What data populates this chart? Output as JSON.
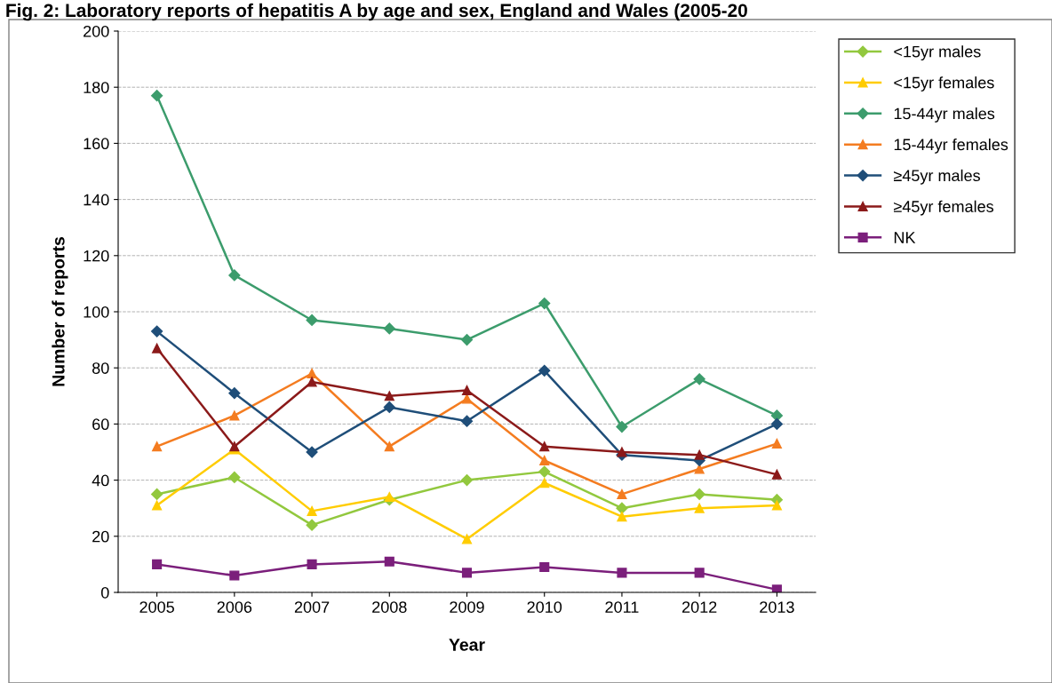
{
  "chart_data": {
    "type": "line",
    "title": "Fig. 2: Laboratory reports of hepatitis A by age and sex, England and Wales (2005-20",
    "xlabel": "Year",
    "ylabel": "Number of reports",
    "categories": [
      "2005",
      "2006",
      "2007",
      "2008",
      "2009",
      "2010",
      "2011",
      "2012",
      "2013"
    ],
    "ylim": [
      0,
      200
    ],
    "yticks": [
      0,
      20,
      40,
      60,
      80,
      100,
      120,
      140,
      160,
      180,
      200
    ],
    "grid": "y",
    "legend": "top right",
    "series": [
      {
        "name": "<15yr males",
        "color": "#92c83e",
        "marker": "diamond",
        "values": [
          35,
          41,
          24,
          33,
          40,
          43,
          30,
          35,
          33
        ]
      },
      {
        "name": "<15yr females",
        "color": "#ffcc00",
        "marker": "triangle",
        "values": [
          31,
          51,
          29,
          34,
          19,
          39,
          27,
          30,
          31
        ]
      },
      {
        "name": "15-44yr males",
        "color": "#3c9c6c",
        "marker": "diamond",
        "values": [
          177,
          113,
          97,
          94,
          90,
          103,
          59,
          76,
          63
        ]
      },
      {
        "name": "15-44yr females",
        "color": "#f47c20",
        "marker": "triangle",
        "values": [
          52,
          63,
          78,
          52,
          69,
          47,
          35,
          44,
          53
        ]
      },
      {
        "name": "≥45yr males",
        "color": "#1f4e79",
        "marker": "diamond",
        "values": [
          93,
          71,
          50,
          66,
          61,
          79,
          49,
          47,
          60
        ]
      },
      {
        "name": "≥45yr females",
        "color": "#8b1a1a",
        "marker": "triangle",
        "values": [
          87,
          52,
          75,
          70,
          72,
          52,
          50,
          49,
          42
        ]
      },
      {
        "name": "NK",
        "color": "#7b1f7b",
        "marker": "square",
        "values": [
          10,
          6,
          10,
          11,
          7,
          9,
          7,
          7,
          1
        ]
      }
    ]
  }
}
